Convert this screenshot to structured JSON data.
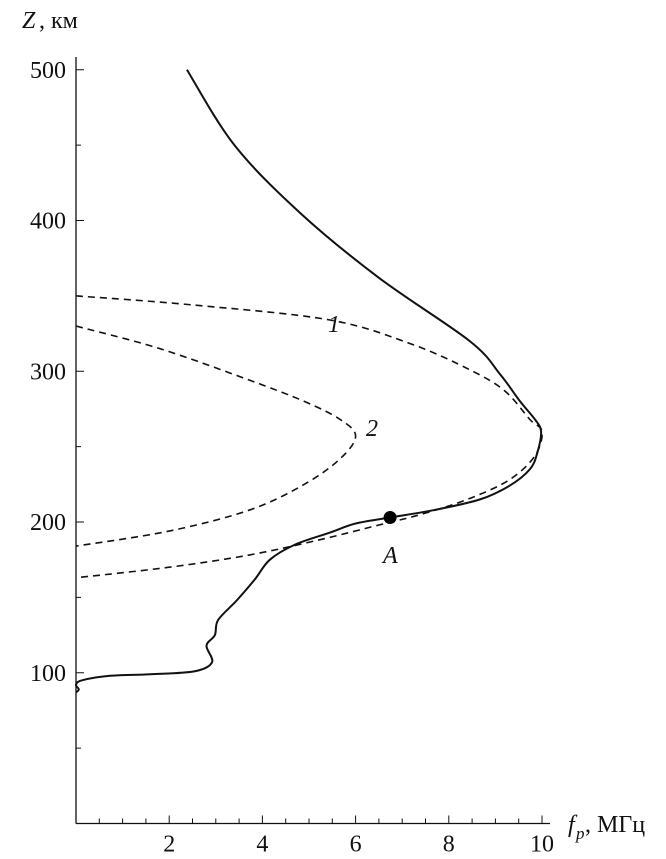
{
  "chart_data": {
    "type": "line",
    "title": "",
    "xlabel_var": "f",
    "xlabel_sub": "p",
    "xlabel_unit": ", МГц",
    "ylabel_var": "Z",
    "ylabel_unit": ", км",
    "xlim": [
      0,
      10
    ],
    "ylim": [
      0,
      520
    ],
    "grid": false,
    "x_ticks": [
      "2",
      "4",
      "6",
      "8",
      "10"
    ],
    "y_ticks": [
      "100",
      "200",
      "300",
      "400",
      "500"
    ],
    "series": [
      {
        "style": "solid",
        "points": [
          [
            2.38,
            500
          ],
          [
            3.4,
            450
          ],
          [
            4.81,
            405
          ],
          [
            6.5,
            362
          ],
          [
            8.45,
            320
          ],
          [
            9.1,
            298
          ],
          [
            9.53,
            280
          ],
          [
            9.85,
            268
          ],
          [
            9.98,
            260
          ],
          [
            9.9,
            246
          ],
          [
            9.74,
            235
          ],
          [
            9.3,
            224
          ],
          [
            8.67,
            215
          ],
          [
            7.7,
            208
          ],
          [
            6.74,
            203
          ],
          [
            6.0,
            199
          ],
          [
            5.45,
            193
          ],
          [
            4.7,
            185
          ],
          [
            4.16,
            175
          ],
          [
            3.84,
            162
          ],
          [
            3.45,
            148
          ],
          [
            3.05,
            135
          ],
          [
            2.98,
            125
          ],
          [
            2.8,
            118
          ],
          [
            2.92,
            107
          ],
          [
            2.55,
            101
          ],
          [
            1.6,
            99
          ],
          [
            0.73,
            98
          ],
          [
            0.13,
            95
          ],
          [
            0.0,
            92
          ],
          [
            0.06,
            89
          ],
          [
            0.0,
            87
          ]
        ]
      },
      {
        "style": "dashed",
        "label": "1",
        "points": [
          [
            0,
            350
          ],
          [
            2.5,
            344
          ],
          [
            5.45,
            334
          ],
          [
            7.2,
            318
          ],
          [
            8.45,
            301
          ],
          [
            9.2,
            287
          ],
          [
            9.74,
            268
          ],
          [
            10,
            260
          ],
          [
            9.85,
            244
          ],
          [
            9.3,
            228
          ],
          [
            8.4,
            215
          ],
          [
            7.4,
            205
          ],
          [
            6.5,
            198
          ],
          [
            5.2,
            188
          ],
          [
            3.7,
            178
          ],
          [
            2.0,
            170
          ],
          [
            0,
            163
          ]
        ]
      },
      {
        "style": "dashed",
        "label": "2",
        "points": [
          [
            0,
            330
          ],
          [
            1.8,
            315
          ],
          [
            3.73,
            294
          ],
          [
            4.9,
            280
          ],
          [
            5.67,
            268
          ],
          [
            6.0,
            257
          ],
          [
            5.67,
            242
          ],
          [
            4.9,
            225
          ],
          [
            3.73,
            208
          ],
          [
            2.0,
            194
          ],
          [
            0,
            184
          ]
        ]
      }
    ],
    "marker": {
      "label": "A",
      "x": 6.74,
      "y": 203
    },
    "annotations": [
      "1",
      "2"
    ]
  }
}
